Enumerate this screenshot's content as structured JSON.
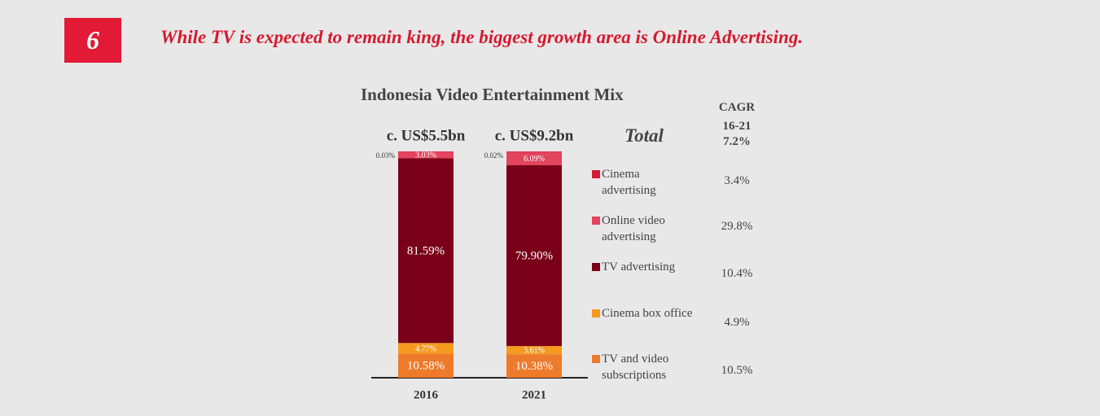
{
  "header": {
    "number": "6",
    "headline": "While TV is expected to remain king, the biggest growth area is Online Advertising."
  },
  "chart_data": {
    "type": "stacked-bar",
    "title": "Indonesia Video Entertainment Mix",
    "categories": [
      "2016",
      "2021"
    ],
    "category_totals": [
      "c. US$5.5bn",
      "c. US$9.2bn"
    ],
    "ylim": [
      0,
      100
    ],
    "cagr_header": "CAGR 16-21",
    "total_label": "Total",
    "total_cagr": 7.2,
    "total_cagr_label": "7.2%",
    "series": [
      {
        "name": "TV and video subscriptions",
        "color": "#ee7a2b",
        "values": [
          10.58,
          10.38
        ],
        "value_labels": [
          "10.58%",
          "10.38%"
        ],
        "cagr": 10.5,
        "cagr_label": "10.5%"
      },
      {
        "name": "Cinema box office",
        "color": "#f59a1f",
        "values": [
          4.77,
          3.61
        ],
        "value_labels": [
          "4.77%",
          "3.61%"
        ],
        "cagr": 4.9,
        "cagr_label": "4.9%"
      },
      {
        "name": "TV advertising",
        "color": "#7a0019",
        "values": [
          81.59,
          79.9
        ],
        "value_labels": [
          "81.59%",
          "79.90%"
        ],
        "cagr": 10.4,
        "cagr_label": "10.4%"
      },
      {
        "name": "Online video advertising",
        "color": "#e3445e",
        "values": [
          3.03,
          6.09
        ],
        "value_labels": [
          "3.03%",
          "6.09%"
        ],
        "cagr": 29.8,
        "cagr_label": "29.8%"
      },
      {
        "name": "Cinema advertising",
        "color": "#d41a36",
        "values": [
          0.03,
          0.02
        ],
        "value_labels": [
          "0.03%",
          "0.02%"
        ],
        "cagr": 3.4,
        "cagr_label": "3.4%"
      }
    ]
  }
}
